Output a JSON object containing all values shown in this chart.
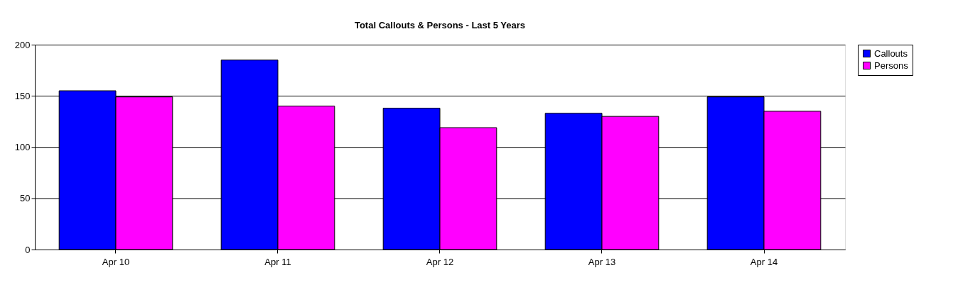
{
  "chart_data": {
    "type": "bar",
    "title": "Total Callouts & Persons - Last 5 Years",
    "categories": [
      "Apr 10",
      "Apr 11",
      "Apr 12",
      "Apr 13",
      "Apr 14"
    ],
    "series": [
      {
        "name": "Callouts",
        "color": "#0000ff",
        "values": [
          155,
          185,
          138,
          133,
          149
        ]
      },
      {
        "name": "Persons",
        "color": "#ff00ff",
        "values": [
          149,
          140,
          119,
          130,
          135
        ]
      }
    ],
    "ylim": [
      0,
      200
    ],
    "yticks": [
      0,
      50,
      100,
      150,
      200
    ],
    "grid": "y",
    "legend": "right"
  }
}
